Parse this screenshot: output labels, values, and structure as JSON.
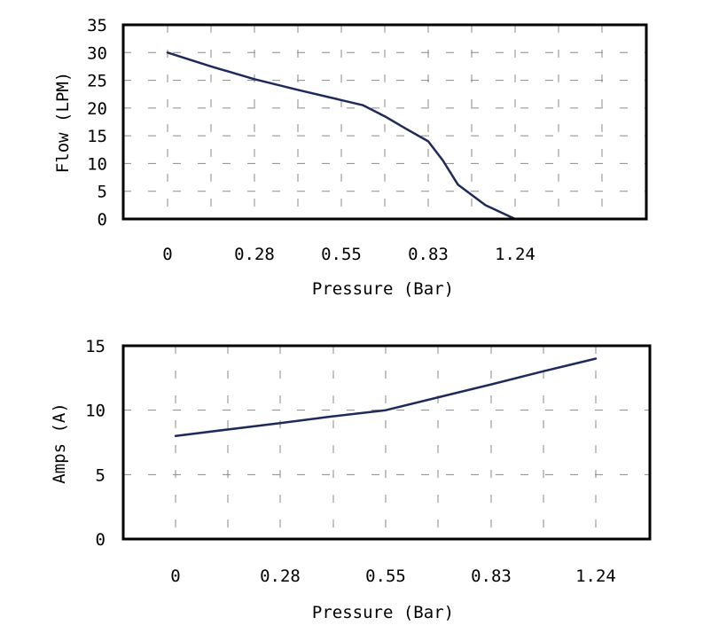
{
  "chart_data": [
    {
      "type": "line",
      "xlabel": "Pressure (Bar)",
      "ylabel": "Flow (LPM)",
      "ylim": [
        0,
        35
      ],
      "y_ticks": [
        "0",
        "5",
        "10",
        "15",
        "20",
        "25",
        "30",
        "35"
      ],
      "x_ticks": [
        "0",
        "0.28",
        "0.55",
        "0.83",
        "1.24"
      ],
      "grid": true,
      "series": [
        {
          "color": "#1f2a5a",
          "points": [
            {
              "x": 0,
              "y": 30
            },
            {
              "x": 0.14,
              "y": 27.5
            },
            {
              "x": 0.28,
              "y": 25.2
            },
            {
              "x": 0.42,
              "y": 23.2
            },
            {
              "x": 0.62,
              "y": 20.5
            },
            {
              "x": 0.69,
              "y": 18.5
            },
            {
              "x": 0.76,
              "y": 16.2
            },
            {
              "x": 0.83,
              "y": 14
            },
            {
              "x": 0.9,
              "y": 10.5
            },
            {
              "x": 0.97,
              "y": 6.2
            },
            {
              "x": 1.1,
              "y": 2.5
            },
            {
              "x": 1.24,
              "y": 0
            }
          ]
        }
      ]
    },
    {
      "type": "line",
      "xlabel": "Pressure (Bar)",
      "ylabel": "Amps (A)",
      "ylim": [
        0,
        15
      ],
      "y_ticks": [
        "0",
        "5",
        "10",
        "15"
      ],
      "x_ticks": [
        "0",
        "0.28",
        "0.55",
        "0.83",
        "1.24"
      ],
      "grid": true,
      "series": [
        {
          "color": "#1f2a5a",
          "points": [
            {
              "x": 0,
              "y": 8
            },
            {
              "x": 0.28,
              "y": 9
            },
            {
              "x": 0.41,
              "y": 9.5
            },
            {
              "x": 0.55,
              "y": 10
            },
            {
              "x": 0.69,
              "y": 11
            },
            {
              "x": 0.83,
              "y": 12
            },
            {
              "x": 1.03,
              "y": 13
            },
            {
              "x": 1.24,
              "y": 14
            }
          ]
        }
      ]
    }
  ]
}
